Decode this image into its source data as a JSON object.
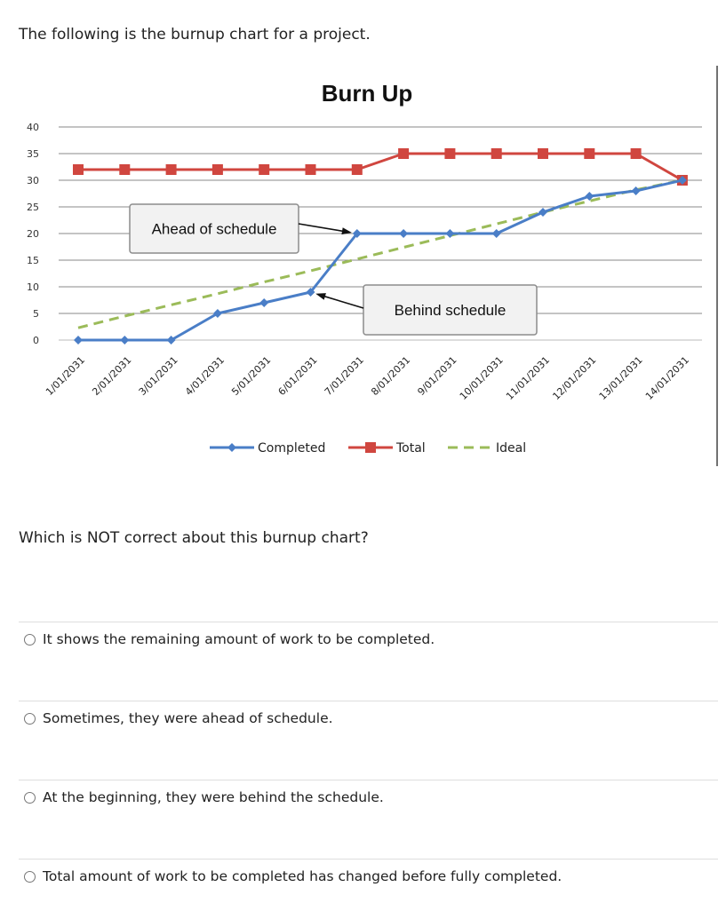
{
  "intro": "The following is the burnup chart for a project.",
  "question": "Which is NOT correct about this burnup chart?",
  "options": [
    "It shows the remaining amount of work to be completed.",
    "Sometimes, they were ahead of schedule.",
    "At the beginning, they were behind the schedule.",
    "Total amount of work to be completed has changed before fully completed."
  ],
  "chart_data": {
    "type": "line",
    "title": "Burn Up",
    "categories": [
      "1/01/2031",
      "2/01/2031",
      "3/01/2031",
      "4/01/2031",
      "5/01/2031",
      "6/01/2031",
      "7/01/2031",
      "8/01/2031",
      "9/01/2031",
      "10/01/2031",
      "11/01/2031",
      "12/01/2031",
      "13/01/2031",
      "14/01/2031"
    ],
    "y_ticks": [
      0,
      5,
      10,
      15,
      20,
      25,
      30,
      35,
      40
    ],
    "ylim": [
      0,
      40
    ],
    "grid": "horizontal",
    "legend_position": "bottom",
    "series": [
      {
        "name": "Completed",
        "color": "#4a7ec7",
        "marker": "diamond",
        "dash": "solid",
        "values": [
          0,
          0,
          0,
          5,
          7,
          9,
          20,
          20,
          20,
          20,
          24,
          27,
          28,
          30
        ]
      },
      {
        "name": "Total",
        "color": "#d0463f",
        "marker": "square",
        "dash": "solid",
        "values": [
          32,
          32,
          32,
          32,
          32,
          32,
          32,
          35,
          35,
          35,
          35,
          35,
          35,
          30
        ]
      },
      {
        "name": "Ideal",
        "color": "#9bbb59",
        "marker": "none",
        "dash": "dashed",
        "values": [
          2.3,
          4.5,
          6.6,
          8.7,
          10.9,
          13.0,
          15.2,
          17.4,
          19.6,
          21.8,
          24.0,
          26.1,
          28.2,
          30.0
        ]
      }
    ],
    "annotations": [
      {
        "text": "Ahead of schedule",
        "points_to": {
          "x": "7/01/2031",
          "y": 20
        }
      },
      {
        "text": "Behind schedule",
        "points_to": {
          "x": "6/01/2031",
          "y": 9
        }
      }
    ]
  }
}
